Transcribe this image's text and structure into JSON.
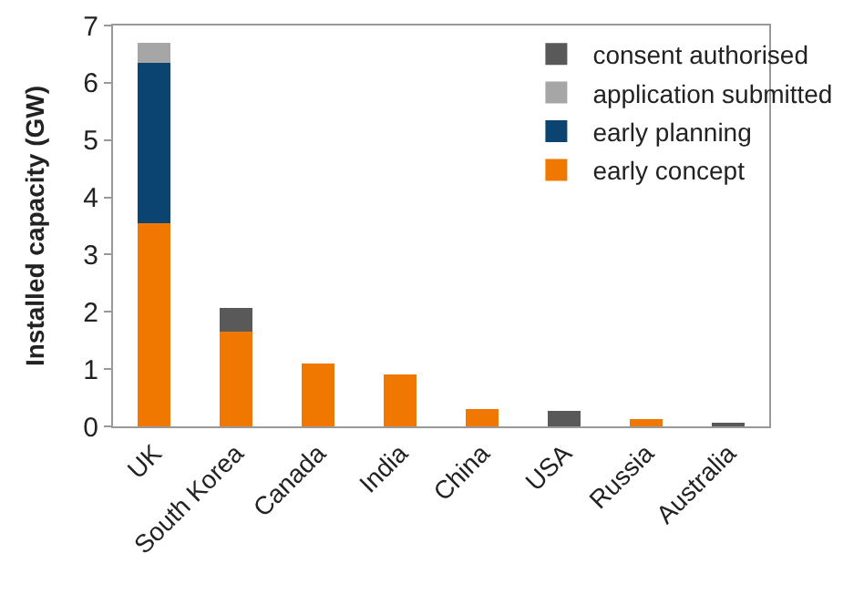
{
  "chart_data": {
    "type": "bar",
    "stacked": true,
    "ylabel": "Installed capacity (GW)",
    "categories": [
      "UK",
      "South Korea",
      "Canada",
      "India",
      "China",
      "USA",
      "Russia",
      "Australia"
    ],
    "series": [
      {
        "name": "early concept",
        "color": "#f07800",
        "values": [
          3.55,
          1.65,
          1.1,
          0.9,
          0.3,
          null,
          0.13,
          null
        ]
      },
      {
        "name": "early planning",
        "color": "#0b4470",
        "values": [
          2.8,
          null,
          null,
          null,
          null,
          null,
          null,
          null
        ]
      },
      {
        "name": "application submitted",
        "color": "#a6a6a6",
        "values": [
          0.35,
          null,
          null,
          null,
          null,
          null,
          null,
          null
        ]
      },
      {
        "name": "consent authorised",
        "color": "#595959",
        "values": [
          null,
          0.42,
          null,
          null,
          null,
          0.27,
          null,
          0.05
        ]
      }
    ],
    "ylim": [
      0,
      7
    ],
    "yticks": [
      0,
      1,
      2,
      3,
      4,
      5,
      6,
      7
    ],
    "grid": false,
    "legend": "top right"
  }
}
